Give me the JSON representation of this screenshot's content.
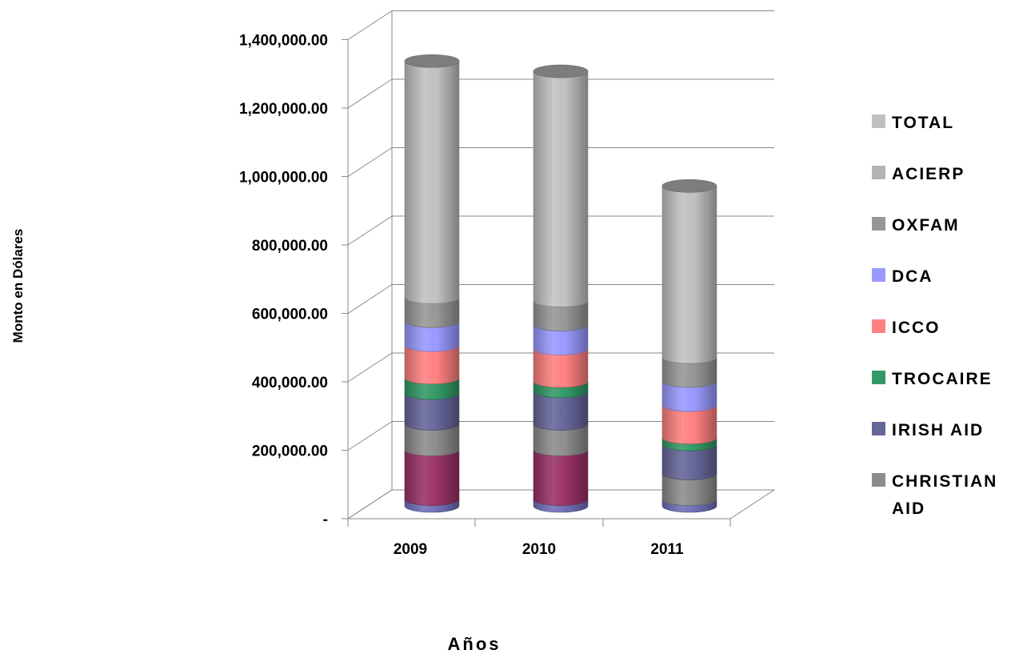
{
  "chart_data": {
    "type": "bar",
    "stacked": true,
    "three_d": true,
    "bar_shape": "cylinder",
    "categories": [
      "2009",
      "2010",
      "2011"
    ],
    "y_tick_labels": [
      "-",
      "200,000.00",
      "400,000.00",
      "600,000.00",
      "800,000.00",
      "1,000,000.00",
      "1,200,000.00",
      "1,400,000.00"
    ],
    "ylim": [
      0,
      1400000
    ],
    "ylabel": "Monto en Dólares",
    "xlabel": "Años",
    "grid": true,
    "legend_position": "right",
    "series": [
      {
        "name": "",
        "color": "#7070b8",
        "values": [
          20000,
          20000,
          20000
        ]
      },
      {
        "name": "",
        "color": "#993366",
        "values": [
          145000,
          145000,
          0
        ]
      },
      {
        "name": "CHRISTIAN AID",
        "color": "#8c8c8c",
        "values": [
          75000,
          75000,
          75000
        ]
      },
      {
        "name": "IRISH AID",
        "color": "#666699",
        "values": [
          90000,
          95000,
          85000
        ]
      },
      {
        "name": "TROCAIRE",
        "color": "#339966",
        "values": [
          45000,
          30000,
          20000
        ]
      },
      {
        "name": "ICCO",
        "color": "#ff8080",
        "values": [
          95000,
          95000,
          95000
        ]
      },
      {
        "name": "DCA",
        "color": "#9999ff",
        "values": [
          70000,
          70000,
          70000
        ]
      },
      {
        "name": "OXFAM",
        "color": "#969696",
        "values": [
          70000,
          70000,
          70000
        ]
      },
      {
        "name": "ACIERP",
        "color": "#b4b4b4",
        "values": [
          0,
          0,
          0
        ]
      },
      {
        "name": "TOTAL",
        "color": "#c0c0c0",
        "values": [
          690000,
          670000,
          500000
        ]
      }
    ],
    "legend_entries": [
      {
        "label": "TOTAL",
        "color": "#c0c0c0"
      },
      {
        "label": "ACIERP",
        "color": "#b4b4b4"
      },
      {
        "label": "OXFAM",
        "color": "#969696"
      },
      {
        "label": "DCA",
        "color": "#9999ff"
      },
      {
        "label": "ICCO",
        "color": "#ff8080"
      },
      {
        "label": "TROCAIRE",
        "color": "#339966"
      },
      {
        "label": "IRISH AID",
        "color": "#666699"
      },
      {
        "label": "CHRISTIAN AID",
        "color": "#8c8c8c"
      }
    ]
  }
}
